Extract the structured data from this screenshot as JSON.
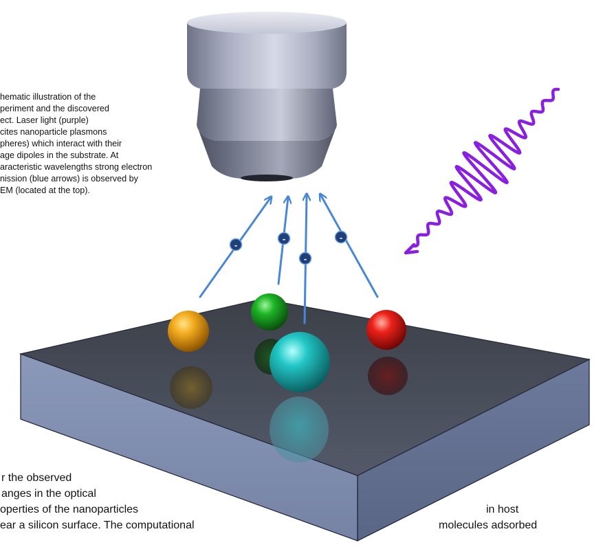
{
  "captions": {
    "top": [
      "hematic illustration of the",
      "periment and the discovered",
      "ect. Laser light (purple)",
      "cites nanoparticle plasmons",
      "pheres) which interact with their",
      "age dipoles in the substrate. At",
      "aracteristic wavelengths strong electron",
      "nission (blue arrows) is observed by",
      "EM (located at the top)."
    ],
    "bottom": [
      "r the observed",
      "anges in the optical",
      "operties of the nanoparticles",
      "ear a silicon surface. The computational"
    ],
    "right": [
      "in host",
      "molecules adsorbed"
    ]
  },
  "electron_symbol": "-",
  "colors": {
    "laser": "#8a1fe0",
    "electron_arrow": "#4a86d6",
    "electron_badge": "#1f3f78",
    "objective": "#a7abbd",
    "substrate_top": "#3b4250",
    "substrate_side": "#7a88aa",
    "sphere_orange": "#f1a31a",
    "sphere_green": "#14a11d",
    "sphere_cyan": "#22c6c6",
    "sphere_red": "#e8201b"
  },
  "objects": {
    "objective": "objective lens (PEEM)",
    "laser": "laser light",
    "substrate": "substrate slab",
    "spheres": [
      "orange nanoparticle",
      "green nanoparticle",
      "cyan nanoparticle",
      "red nanoparticle"
    ]
  }
}
